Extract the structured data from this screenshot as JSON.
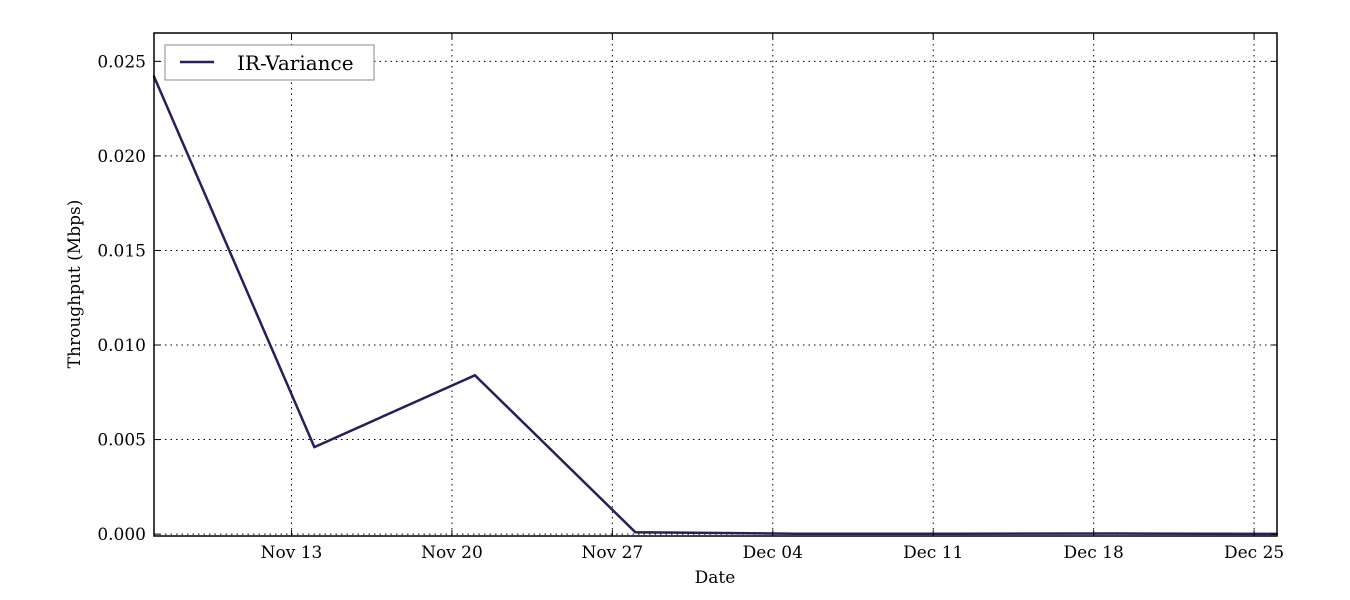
{
  "chart_data": {
    "type": "line",
    "xlabel": "Date",
    "ylabel": "Throughput (Mbps)",
    "x_tick_labels": [
      "Nov 13",
      "Nov 20",
      "Nov 27",
      "Dec 04",
      "Dec 11",
      "Dec 18",
      "Dec 25"
    ],
    "x_tick_dates": [
      "2013-11-13",
      "2013-11-20",
      "2013-11-27",
      "2013-12-04",
      "2013-12-11",
      "2013-12-18",
      "2013-12-25"
    ],
    "y_tick_labels": [
      "0.000",
      "0.005",
      "0.010",
      "0.015",
      "0.020",
      "0.025"
    ],
    "y_tick_values": [
      0,
      0.005,
      0.01,
      0.015,
      0.02,
      0.025
    ],
    "xlim": [
      "2013-11-07",
      "2013-12-26"
    ],
    "ylim": [
      -0.0001,
      0.0265
    ],
    "grid": true,
    "legend_position": "top-left",
    "series": [
      {
        "name": "IR-Variance",
        "color": "#2b1d5c",
        "x": [
          "2013-11-07",
          "2013-11-14",
          "2013-11-21",
          "2013-11-28",
          "2013-12-05",
          "2013-12-12",
          "2013-12-19",
          "2013-12-26"
        ],
        "y": [
          0.0242,
          0.0046,
          0.0084,
          0.0001,
          2e-05,
          2e-05,
          3e-05,
          1e-05
        ]
      }
    ]
  }
}
